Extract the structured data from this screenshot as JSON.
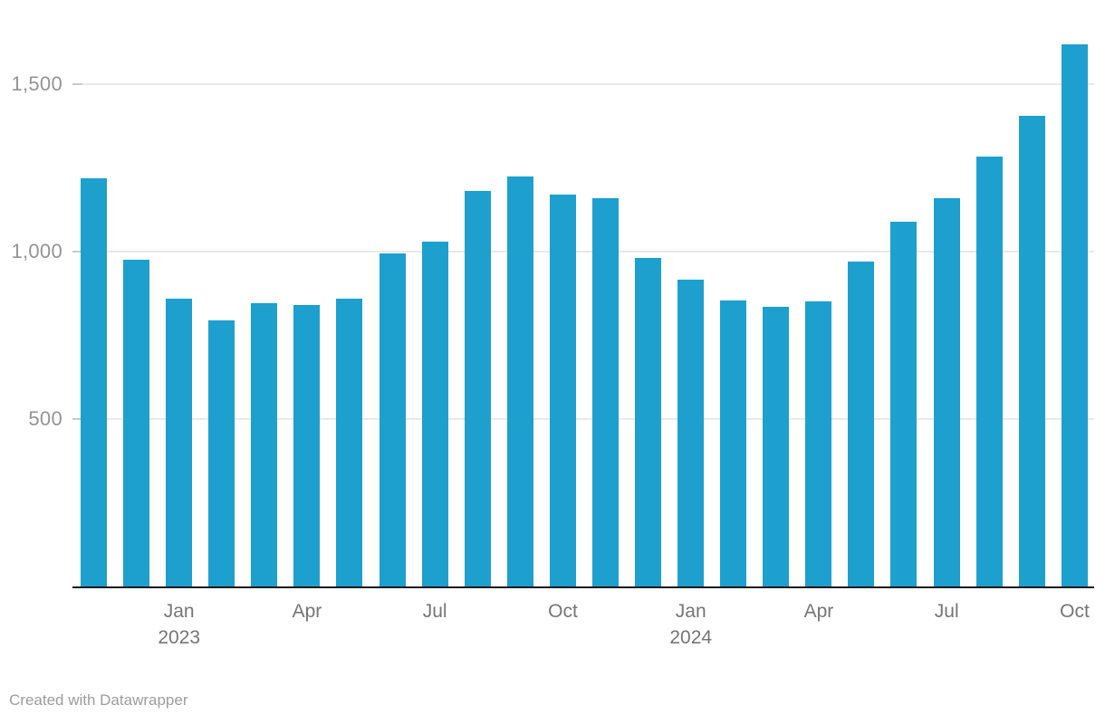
{
  "chart_data": {
    "type": "bar",
    "categories": [
      "Nov 2022",
      "Dec 2022",
      "Jan 2023",
      "Feb 2023",
      "Mar 2023",
      "Apr 2023",
      "May 2023",
      "Jun 2023",
      "Jul 2023",
      "Aug 2023",
      "Sep 2023",
      "Oct 2023",
      "Nov 2023",
      "Dec 2023",
      "Jan 2024",
      "Feb 2024",
      "Mar 2024",
      "Apr 2024",
      "May 2024",
      "Jun 2024",
      "Jul 2024",
      "Aug 2024",
      "Sep 2024",
      "Oct 2024"
    ],
    "values": [
      1220,
      975,
      860,
      795,
      845,
      840,
      860,
      995,
      1030,
      1180,
      1225,
      1170,
      1160,
      980,
      915,
      855,
      835,
      850,
      970,
      1090,
      1160,
      1285,
      1405,
      1620
    ],
    "ylim": [
      0,
      1750
    ],
    "grid": "horizontal",
    "legend": "none",
    "bar_color": "#1da0cd",
    "axis_color": "#1a1a1a",
    "gridline_color": "#e9e9e9",
    "y_axis": {
      "ticks": [
        {
          "value": 500,
          "label": "500"
        },
        {
          "value": 1000,
          "label": "1,000"
        },
        {
          "value": 1500,
          "label": "1,500"
        }
      ]
    },
    "x_axis": {
      "ticks": [
        {
          "month": "Jan",
          "year": "2023",
          "bar_index": 2
        },
        {
          "month": "Apr",
          "year": "",
          "bar_index": 5
        },
        {
          "month": "Jul",
          "year": "",
          "bar_index": 8
        },
        {
          "month": "Oct",
          "year": "",
          "bar_index": 11
        },
        {
          "month": "Jan",
          "year": "2024",
          "bar_index": 14
        },
        {
          "month": "Apr",
          "year": "",
          "bar_index": 17
        },
        {
          "month": "Jul",
          "year": "",
          "bar_index": 20
        },
        {
          "month": "Oct",
          "year": "",
          "bar_index": 23
        }
      ]
    }
  },
  "footer": {
    "credit": "Created with Datawrapper"
  }
}
